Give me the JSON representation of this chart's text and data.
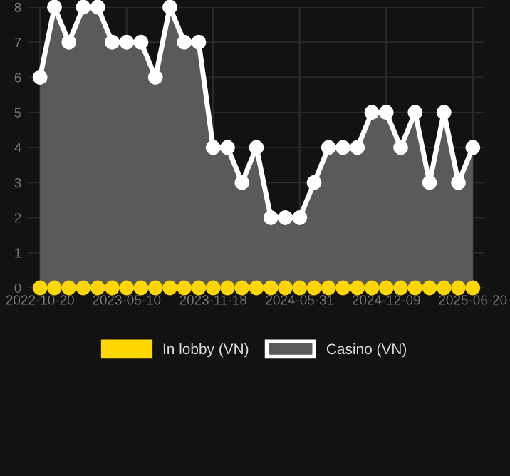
{
  "chart_data": {
    "type": "area",
    "categories": [
      "2022-10-20",
      null,
      null,
      null,
      null,
      null,
      "2023-05-10",
      null,
      null,
      null,
      null,
      null,
      "2023-11-18",
      null,
      null,
      null,
      null,
      null,
      "2024-05-31",
      null,
      null,
      null,
      null,
      null,
      "2024-12-09",
      null,
      null,
      null,
      null,
      null,
      "2025-06-20"
    ],
    "series": [
      {
        "name": "In lobby (VN)",
        "type": "scatter",
        "color": "#ffd700",
        "values": [
          0,
          0,
          0,
          0,
          0,
          0,
          0,
          0,
          0,
          0,
          0,
          0,
          0,
          0,
          0,
          0,
          0,
          0,
          0,
          0,
          0,
          0,
          0,
          0,
          0,
          0,
          0,
          0,
          0,
          0,
          0
        ]
      },
      {
        "name": "Casino (VN)",
        "color": "#ffffff",
        "values": [
          6,
          8,
          7,
          8,
          8,
          7,
          7,
          7,
          6,
          8,
          7,
          7,
          4,
          4,
          3,
          4,
          2,
          2,
          2,
          3,
          4,
          4,
          4,
          5,
          5,
          4,
          5,
          3,
          5,
          3,
          4
        ]
      }
    ],
    "ylim": [
      0,
      8
    ],
    "yticks": [
      0,
      1,
      2,
      3,
      4,
      5,
      6,
      7,
      8
    ],
    "grid": true,
    "legend": "bottom",
    "marker": "circle",
    "line_style": "solid"
  }
}
